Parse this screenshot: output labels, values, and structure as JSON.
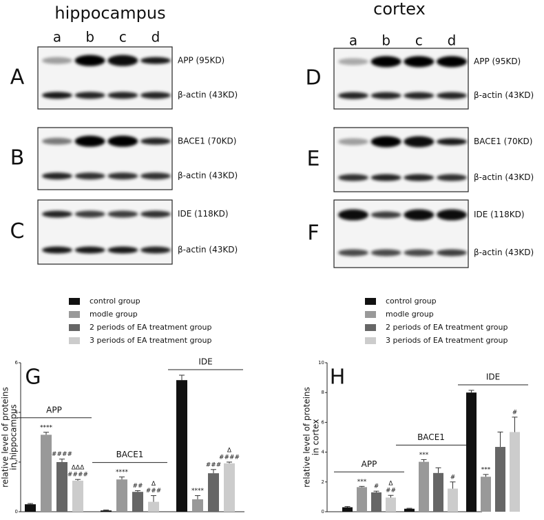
{
  "blots": [
    {
      "title": "hippocampus",
      "lanes": [
        "a",
        "b",
        "c",
        "d"
      ],
      "panels": [
        {
          "letter": "A",
          "labels": [
            "APP (95KD)",
            "β-actin (43KD)"
          ]
        },
        {
          "letter": "B",
          "labels": [
            "BACE1 (70KD)",
            "β-actin (43KD)"
          ]
        },
        {
          "letter": "C",
          "labels": [
            "IDE (118KD)",
            "β-actin (43KD)"
          ]
        }
      ]
    },
    {
      "title": "cortex",
      "lanes": [
        "a",
        "b",
        "c",
        "d"
      ],
      "panels": [
        {
          "letter": "D",
          "labels": [
            "APP (95KD)",
            "β-actin (43KD)"
          ]
        },
        {
          "letter": "E",
          "labels": [
            "BACE1 (70KD)",
            "β-actin (43KD)"
          ]
        },
        {
          "letter": "F",
          "labels": [
            "IDE (118KD)",
            "β-actin (43KD)"
          ]
        }
      ]
    }
  ],
  "chart_data": [
    {
      "type": "bar",
      "panel_letter": "G",
      "ylabel": [
        "relative level of proteins",
        "in hippocampus"
      ],
      "categories": [
        "APP",
        "BACE1",
        "IDE"
      ],
      "ylim": [
        0,
        6
      ],
      "yticks": [
        0,
        2,
        4,
        6
      ],
      "series": [
        {
          "name": "control group",
          "color": "#111111",
          "values": [
            0.3,
            0.05,
            5.3
          ],
          "errors": [
            0.03,
            0.02,
            0.2
          ],
          "annotations": [
            null,
            null,
            null
          ]
        },
        {
          "name": "modle group",
          "color": "#999999",
          "values": [
            3.1,
            1.3,
            0.5
          ],
          "errors": [
            0.1,
            0.1,
            0.15
          ],
          "annotations": [
            [
              "****"
            ],
            [
              "****"
            ],
            [
              "****"
            ]
          ]
        },
        {
          "name": "2 periods of EA treatment group",
          "color": "#666666",
          "values": [
            2.0,
            0.8,
            1.55
          ],
          "errors": [
            0.12,
            0.05,
            0.15
          ],
          "annotations": [
            [
              "####"
            ],
            [
              "##"
            ],
            [
              "###"
            ]
          ]
        },
        {
          "name": "3 periods of EA treatment group",
          "color": "#cccccc",
          "values": [
            1.25,
            0.4,
            1.95
          ],
          "errors": [
            0.05,
            0.25,
            0.05
          ],
          "annotations": [
            [
              "ΔΔΔ",
              "####"
            ],
            [
              "Δ",
              "###"
            ],
            [
              "Δ",
              "####"
            ]
          ]
        }
      ]
    },
    {
      "type": "bar",
      "panel_letter": "H",
      "ylabel": [
        "relative level of proteins",
        "in cortex"
      ],
      "categories": [
        "APP",
        "BACE1",
        "IDE"
      ],
      "ylim": [
        0,
        10
      ],
      "yticks": [
        0,
        2,
        4,
        6,
        8,
        10
      ],
      "series": [
        {
          "name": "control group",
          "color": "#111111",
          "values": [
            0.3,
            0.2,
            8.0
          ],
          "errors": [
            0.05,
            0.03,
            0.15
          ],
          "annotations": [
            null,
            null,
            null
          ]
        },
        {
          "name": "modle group",
          "color": "#999999",
          "values": [
            1.65,
            3.35,
            2.35
          ],
          "errors": [
            0.05,
            0.15,
            0.15
          ],
          "annotations": [
            [
              "***"
            ],
            [
              "***"
            ],
            [
              "***"
            ]
          ]
        },
        {
          "name": "2 periods of EA treatment group",
          "color": "#666666",
          "values": [
            1.3,
            2.6,
            4.35
          ],
          "errors": [
            0.08,
            0.35,
            1.0
          ],
          "annotations": [
            [
              "#"
            ],
            null,
            null
          ]
        },
        {
          "name": "3 periods of EA treatment group",
          "color": "#cccccc",
          "values": [
            0.95,
            1.55,
            5.35
          ],
          "errors": [
            0.15,
            0.45,
            1.0
          ],
          "annotations": [
            [
              "Δ",
              "##"
            ],
            [
              "#"
            ],
            [
              "#"
            ]
          ]
        }
      ]
    }
  ]
}
